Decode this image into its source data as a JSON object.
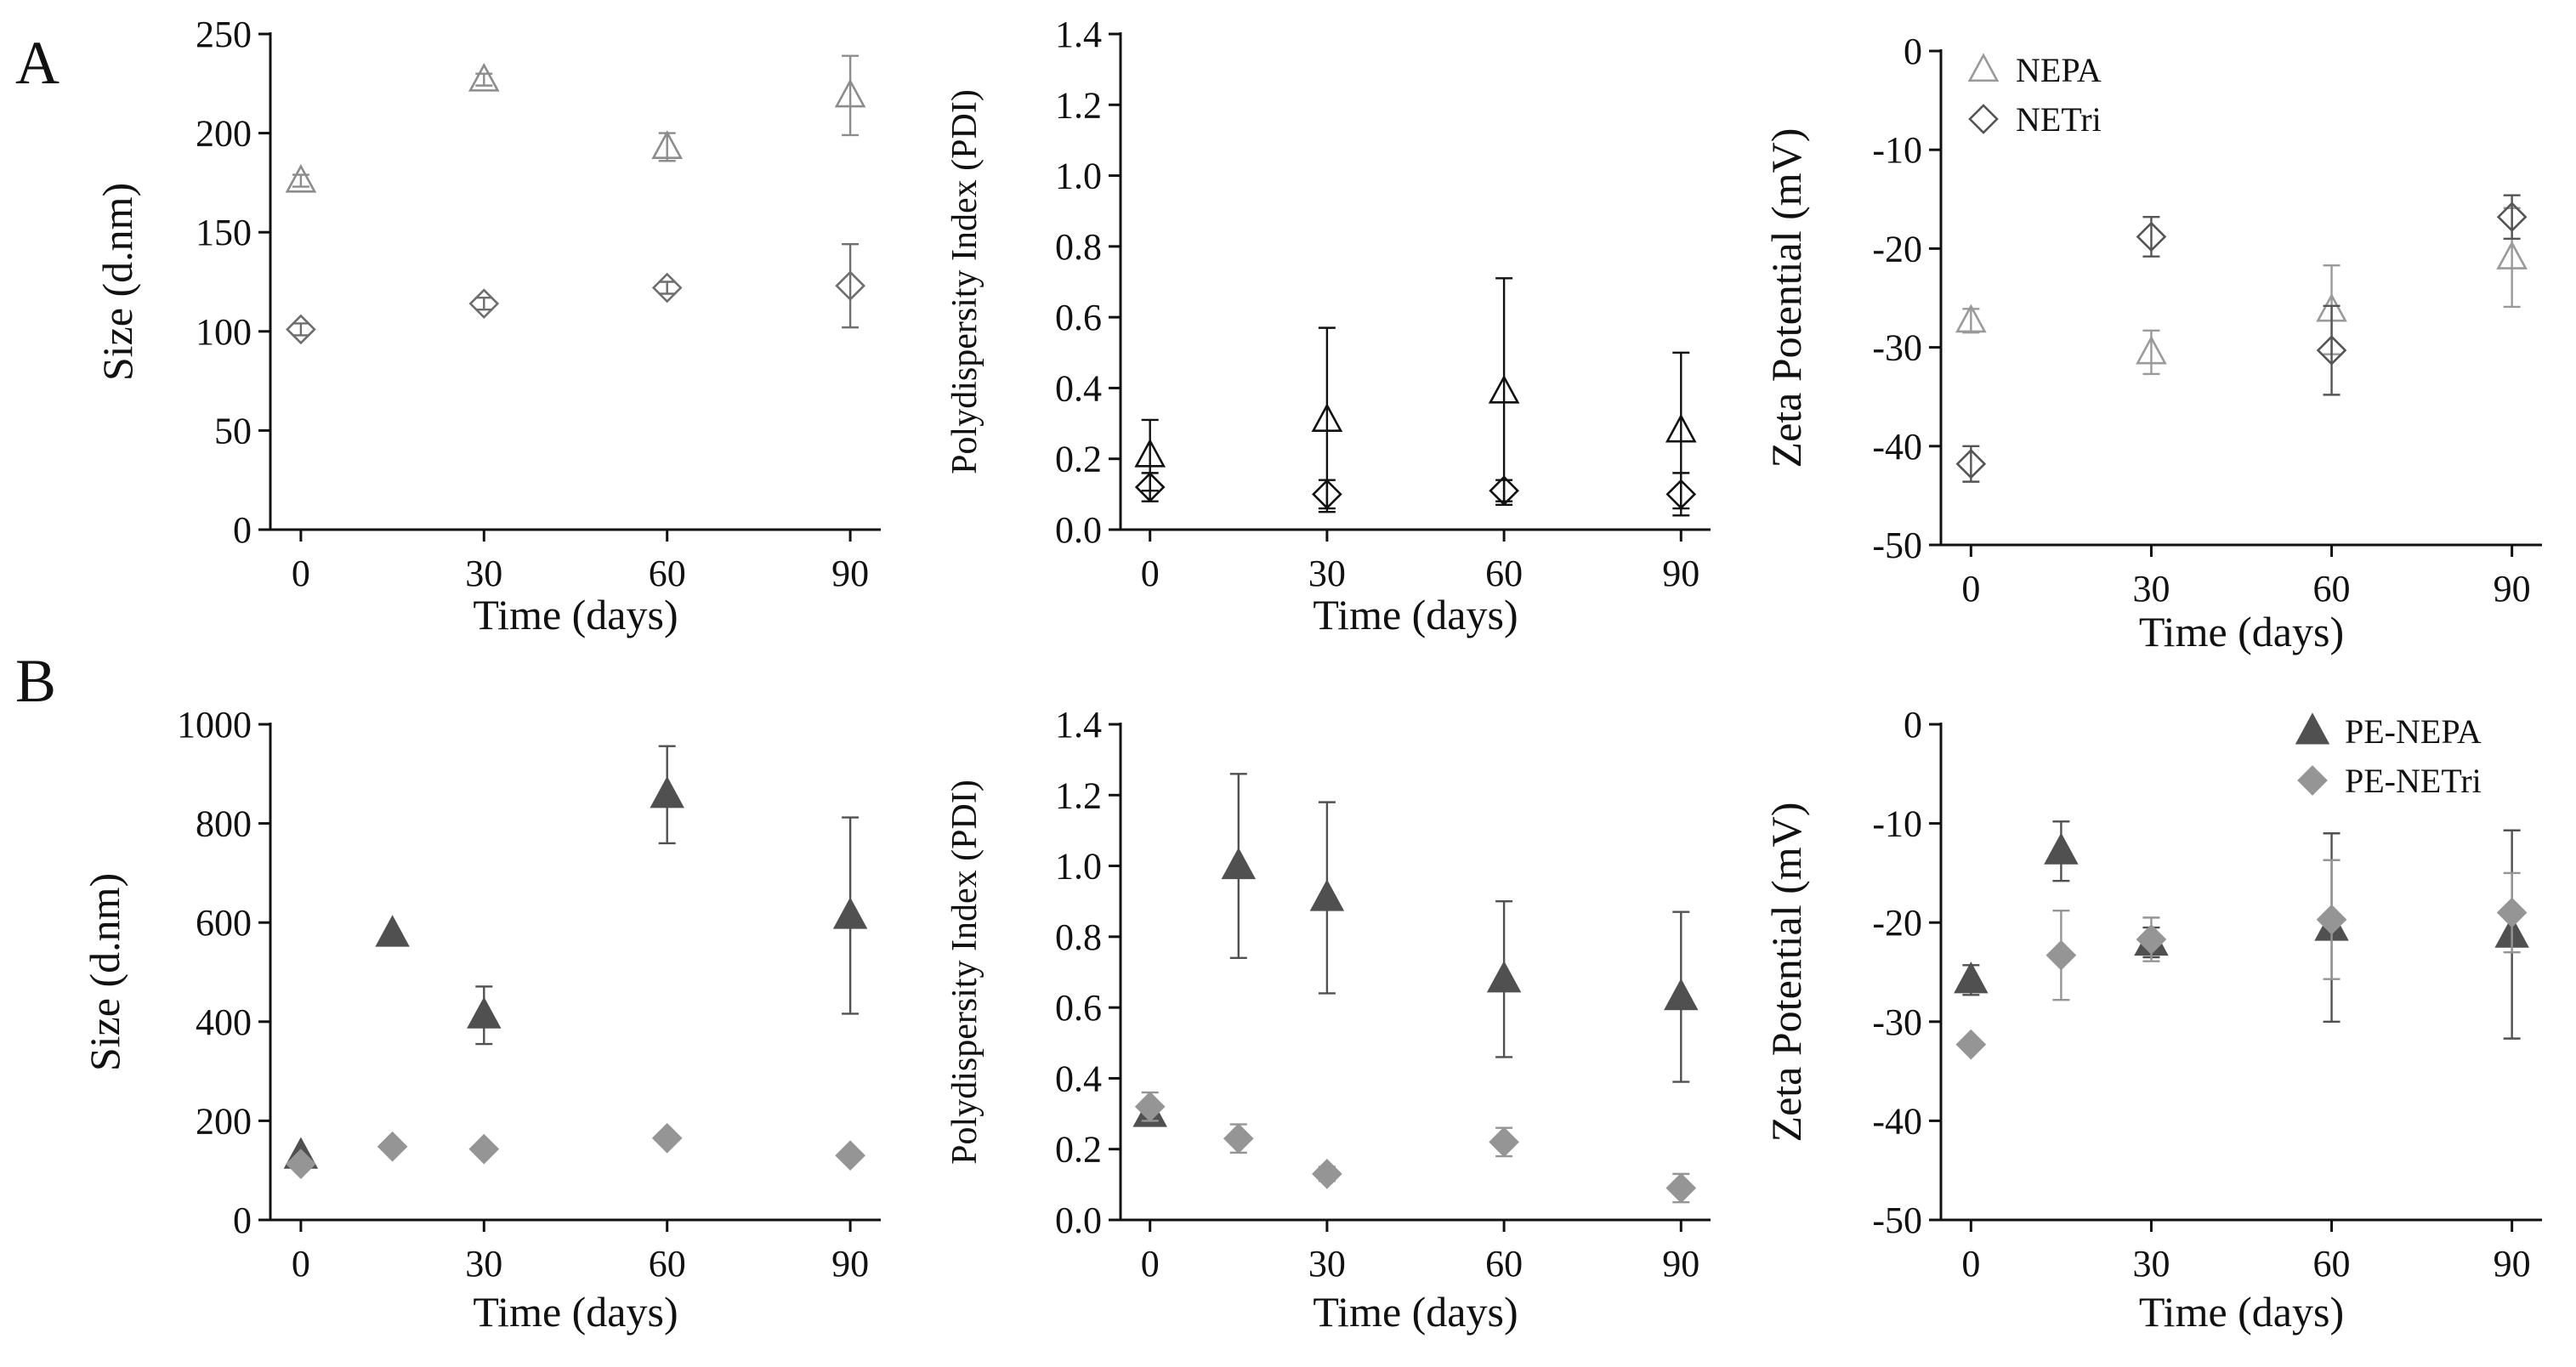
{
  "panel_labels": [
    "A",
    "B"
  ],
  "chart_data": [
    {
      "id": "A1",
      "panel": "A",
      "type": "scatter",
      "title": "",
      "xlabel": "Time (days)",
      "ylabel": "Size (d.nm)",
      "xlim": [
        -5,
        95
      ],
      "ylim": [
        0,
        250
      ],
      "xticks": [
        0,
        30,
        60,
        90
      ],
      "yticks": [
        0,
        50,
        100,
        150,
        200,
        250
      ],
      "ytick_labels": [
        "0",
        "50",
        "100",
        "150",
        "200",
        "250"
      ],
      "legend": null,
      "series": [
        {
          "name": "NEPA",
          "marker": "triangle-open",
          "color": "#8c8c8c",
          "points": [
            {
              "x": 0,
              "y": 176,
              "err": 3
            },
            {
              "x": 30,
              "y": 227,
              "err": 3
            },
            {
              "x": 60,
              "y": 193,
              "err": 7
            },
            {
              "x": 90,
              "y": 219,
              "err": 20
            }
          ]
        },
        {
          "name": "NETri",
          "marker": "diamond-open",
          "color": "#6e6e6e",
          "points": [
            {
              "x": 0,
              "y": 101,
              "err": 3
            },
            {
              "x": 30,
              "y": 114,
              "err": 3
            },
            {
              "x": 60,
              "y": 122,
              "err": 3
            },
            {
              "x": 90,
              "y": 123,
              "err": 21
            }
          ]
        }
      ]
    },
    {
      "id": "A2",
      "panel": "A",
      "type": "scatter",
      "title": "",
      "xlabel": "Time (days)",
      "ylabel": "Polydispersity Index (PDI)",
      "xlim": [
        -5,
        95
      ],
      "ylim": [
        0,
        1.4
      ],
      "xticks": [
        0,
        30,
        60,
        90
      ],
      "yticks": [
        0,
        0.2,
        0.4,
        0.6,
        0.8,
        1.0,
        1.2,
        1.4
      ],
      "ytick_labels": [
        "0.0",
        "0.2",
        "0.4",
        "0.6",
        "0.8",
        "1.0",
        "1.2",
        "1.4"
      ],
      "legend": null,
      "series": [
        {
          "name": "NEPA",
          "marker": "triangle-open",
          "color": "#111111",
          "points": [
            {
              "x": 0,
              "y": 0.21,
              "err": 0.1
            },
            {
              "x": 30,
              "y": 0.31,
              "err": 0.26
            },
            {
              "x": 60,
              "y": 0.39,
              "err": 0.32
            },
            {
              "x": 90,
              "y": 0.28,
              "err": 0.22
            }
          ]
        },
        {
          "name": "NETri",
          "marker": "diamond-open",
          "color": "#111111",
          "points": [
            {
              "x": 0,
              "y": 0.12,
              "err": 0.04
            },
            {
              "x": 30,
              "y": 0.1,
              "err": 0.04
            },
            {
              "x": 60,
              "y": 0.11,
              "err": 0.03
            },
            {
              "x": 90,
              "y": 0.1,
              "err": 0.06
            }
          ]
        }
      ]
    },
    {
      "id": "A3",
      "panel": "A",
      "type": "scatter",
      "title": "",
      "xlabel": "Time (days)",
      "ylabel": "Zeta Potential (mV)",
      "xlim": [
        -5,
        95
      ],
      "ylim": [
        -50,
        0
      ],
      "xticks": [
        0,
        30,
        60,
        90
      ],
      "yticks": [
        -50,
        -40,
        -30,
        -20,
        -10,
        0
      ],
      "ytick_labels": [
        "-50",
        "-40",
        "-30",
        "-20",
        "-10",
        "0"
      ],
      "legend": "top-left",
      "legend_entries": [
        "NEPA",
        "NETri"
      ],
      "series": [
        {
          "name": "NEPA",
          "marker": "triangle-open",
          "color": "#9a9a9a",
          "points": [
            {
              "x": 0,
              "y": -27.3,
              "err": 1.2
            },
            {
              "x": 30,
              "y": -30.5,
              "err": 2.2
            },
            {
              "x": 60,
              "y": -26.2,
              "err": 4.5
            },
            {
              "x": 90,
              "y": -20.9,
              "err": 5.0
            }
          ]
        },
        {
          "name": "NETri",
          "marker": "diamond-open",
          "color": "#555555",
          "points": [
            {
              "x": 0,
              "y": -41.8,
              "err": 1.8
            },
            {
              "x": 30,
              "y": -18.8,
              "err": 2.0
            },
            {
              "x": 60,
              "y": -30.3,
              "err": 4.5
            },
            {
              "x": 90,
              "y": -16.8,
              "err": 2.2
            }
          ]
        }
      ]
    },
    {
      "id": "B1",
      "panel": "B",
      "type": "scatter",
      "title": "",
      "xlabel": "Time (days)",
      "ylabel": "Size (d.nm)",
      "xlim": [
        -5,
        95
      ],
      "ylim": [
        0,
        1000
      ],
      "xticks": [
        0,
        30,
        60,
        90
      ],
      "yticks": [
        0,
        200,
        400,
        600,
        800,
        1000
      ],
      "ytick_labels": [
        "0",
        "200",
        "400",
        "600",
        "800",
        "1000"
      ],
      "legend": null,
      "series": [
        {
          "name": "PE-NEPA",
          "marker": "triangle-filled",
          "color": "#505050",
          "points": [
            {
              "x": 0,
              "y": 130,
              "err": 0
            },
            {
              "x": 15,
              "y": 578,
              "err": 0
            },
            {
              "x": 30,
              "y": 413,
              "err": 58
            },
            {
              "x": 60,
              "y": 858,
              "err": 98
            },
            {
              "x": 90,
              "y": 614,
              "err": 198
            }
          ]
        },
        {
          "name": "PE-NETri",
          "marker": "diamond-filled",
          "color": "#959595",
          "points": [
            {
              "x": 0,
              "y": 113,
              "err": 0
            },
            {
              "x": 15,
              "y": 148,
              "err": 0
            },
            {
              "x": 30,
              "y": 143,
              "err": 0
            },
            {
              "x": 60,
              "y": 165,
              "err": 0
            },
            {
              "x": 90,
              "y": 130,
              "err": 0
            }
          ]
        }
      ]
    },
    {
      "id": "B2",
      "panel": "B",
      "type": "scatter",
      "title": "",
      "xlabel": "Time (days)",
      "ylabel": "Polydispersity Index (PDI)",
      "xlim": [
        -5,
        95
      ],
      "ylim": [
        0,
        1.4
      ],
      "xticks": [
        0,
        30,
        60,
        90
      ],
      "yticks": [
        0,
        0.2,
        0.4,
        0.6,
        0.8,
        1.0,
        1.2,
        1.4
      ],
      "ytick_labels": [
        "0.0",
        "0.2",
        "0.4",
        "0.6",
        "0.8",
        "1.0",
        "1.2",
        "1.4"
      ],
      "legend": null,
      "series": [
        {
          "name": "PE-NEPA",
          "marker": "triangle-filled",
          "color": "#505050",
          "points": [
            {
              "x": 0,
              "y": 0.3,
              "err": 0.03
            },
            {
              "x": 15,
              "y": 1.0,
              "err": 0.26
            },
            {
              "x": 30,
              "y": 0.91,
              "err": 0.27
            },
            {
              "x": 60,
              "y": 0.68,
              "err": 0.22
            },
            {
              "x": 90,
              "y": 0.63,
              "err": 0.24
            }
          ]
        },
        {
          "name": "PE-NETri",
          "marker": "diamond-filled",
          "color": "#959595",
          "points": [
            {
              "x": 0,
              "y": 0.32,
              "err": 0.04
            },
            {
              "x": 15,
              "y": 0.23,
              "err": 0.04
            },
            {
              "x": 30,
              "y": 0.13,
              "err": 0.02
            },
            {
              "x": 60,
              "y": 0.22,
              "err": 0.04
            },
            {
              "x": 90,
              "y": 0.09,
              "err": 0.04
            }
          ]
        }
      ]
    },
    {
      "id": "B3",
      "panel": "B",
      "type": "scatter",
      "title": "",
      "xlabel": "Time (days)",
      "ylabel": "Zeta Potential (mV)",
      "xlim": [
        -5,
        95
      ],
      "ylim": [
        -50,
        0
      ],
      "xticks": [
        0,
        30,
        60,
        90
      ],
      "yticks": [
        -50,
        -40,
        -30,
        -20,
        -10,
        0
      ],
      "ytick_labels": [
        "-50",
        "-40",
        "-30",
        "-20",
        "-10",
        "0"
      ],
      "legend": "top-right",
      "legend_entries": [
        "PE-NEPA",
        "PE-NETri"
      ],
      "series": [
        {
          "name": "PE-NEPA",
          "marker": "triangle-filled",
          "color": "#505050",
          "points": [
            {
              "x": 0,
              "y": -25.8,
              "err": 1.5
            },
            {
              "x": 15,
              "y": -12.8,
              "err": 3.0
            },
            {
              "x": 30,
              "y": -22.0,
              "err": 1.5
            },
            {
              "x": 60,
              "y": -20.5,
              "err": 9.5
            },
            {
              "x": 90,
              "y": -21.2,
              "err": 10.5
            }
          ]
        },
        {
          "name": "PE-NETri",
          "marker": "diamond-filled",
          "color": "#959595",
          "points": [
            {
              "x": 0,
              "y": -32.3,
              "err": 0
            },
            {
              "x": 15,
              "y": -23.3,
              "err": 4.5
            },
            {
              "x": 30,
              "y": -21.7,
              "err": 2.2
            },
            {
              "x": 60,
              "y": -19.7,
              "err": 6.0
            },
            {
              "x": 90,
              "y": -19.0,
              "err": 4.0
            }
          ]
        }
      ]
    }
  ]
}
